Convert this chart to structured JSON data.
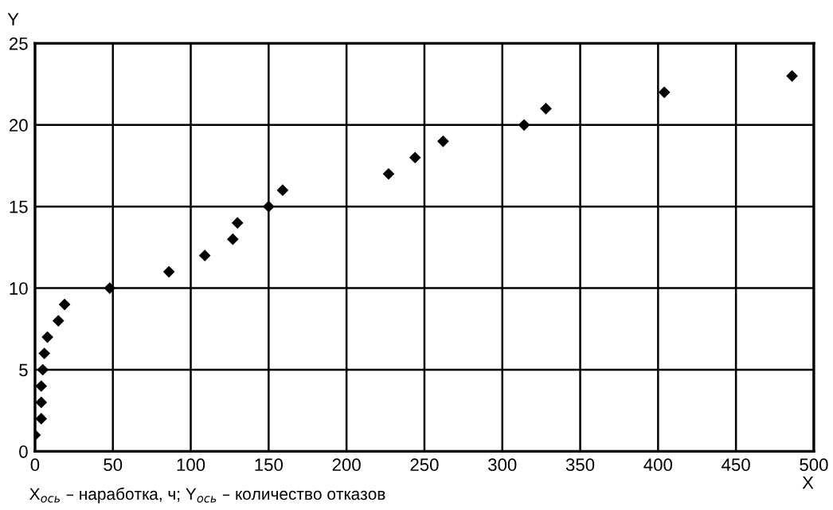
{
  "chart_data": {
    "type": "scatter",
    "xlabel": "X",
    "ylabel": "Y",
    "annotations": [
      "X$_{ось}$ – наработка, ч; Y$_{ось}$ – количество отказов"
    ],
    "x": [
      0,
      4,
      4,
      4,
      5,
      6,
      8,
      15,
      19,
      48,
      86,
      109,
      127,
      130,
      150,
      159,
      227,
      244,
      262,
      314,
      328,
      404,
      486
    ],
    "series": [
      {
        "color": "#000000",
        "values": [
          1,
          2,
          3,
          4,
          5,
          6,
          7,
          8,
          9,
          10,
          11,
          12,
          13,
          14,
          15,
          16,
          17,
          18,
          19,
          20,
          21,
          22,
          23
        ]
      }
    ],
    "xlim": [
      0,
      500
    ],
    "xticks": [
      0,
      50,
      100,
      150,
      200,
      250,
      300,
      350,
      400,
      450,
      500
    ],
    "ylim": [
      0,
      25
    ],
    "yticks": [
      0,
      5,
      10,
      15,
      20,
      25
    ],
    "grid": true,
    "marker": "diamond"
  }
}
